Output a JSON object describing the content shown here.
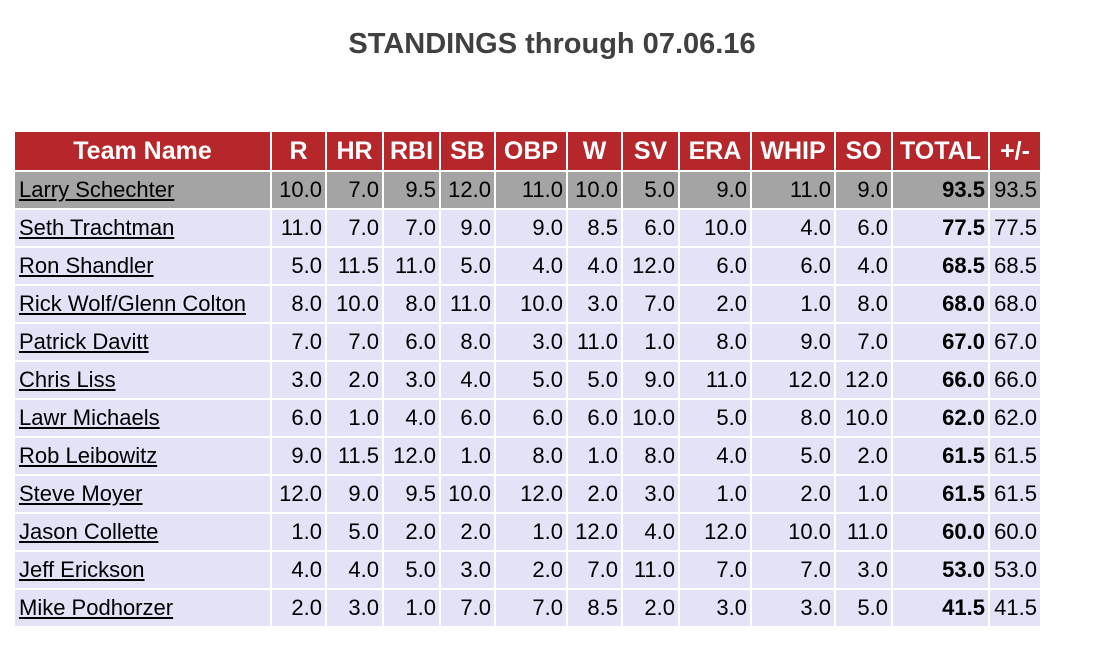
{
  "page": {
    "title": "STANDINGS through 07.06.16"
  },
  "colors": {
    "header_bg": "#b5272b",
    "header_text": "#ffffff",
    "row_bg": "#e3e3f7",
    "leader_row_bg": "#a4a4a4",
    "title_color": "#404040"
  },
  "table": {
    "headers": [
      "Team Name",
      "R",
      "HR",
      "RBI",
      "SB",
      "OBP",
      "W",
      "SV",
      "ERA",
      "WHIP",
      "SO",
      "TOTAL",
      "+/-"
    ],
    "rows": [
      {
        "team": "Larry Schechter",
        "r": "10.0",
        "hr": "7.0",
        "rbi": "9.5",
        "sb": "12.0",
        "obp": "11.0",
        "w": "10.0",
        "sv": "5.0",
        "era": "9.0",
        "whip": "11.0",
        "so": "9.0",
        "total": "93.5",
        "diff": "93.5"
      },
      {
        "team": "Seth Trachtman",
        "r": "11.0",
        "hr": "7.0",
        "rbi": "7.0",
        "sb": "9.0",
        "obp": "9.0",
        "w": "8.5",
        "sv": "6.0",
        "era": "10.0",
        "whip": "4.0",
        "so": "6.0",
        "total": "77.5",
        "diff": "77.5"
      },
      {
        "team": "Ron Shandler",
        "r": "5.0",
        "hr": "11.5",
        "rbi": "11.0",
        "sb": "5.0",
        "obp": "4.0",
        "w": "4.0",
        "sv": "12.0",
        "era": "6.0",
        "whip": "6.0",
        "so": "4.0",
        "total": "68.5",
        "diff": "68.5"
      },
      {
        "team": "Rick Wolf/Glenn Colton",
        "r": "8.0",
        "hr": "10.0",
        "rbi": "8.0",
        "sb": "11.0",
        "obp": "10.0",
        "w": "3.0",
        "sv": "7.0",
        "era": "2.0",
        "whip": "1.0",
        "so": "8.0",
        "total": "68.0",
        "diff": "68.0"
      },
      {
        "team": "Patrick Davitt",
        "r": "7.0",
        "hr": "7.0",
        "rbi": "6.0",
        "sb": "8.0",
        "obp": "3.0",
        "w": "11.0",
        "sv": "1.0",
        "era": "8.0",
        "whip": "9.0",
        "so": "7.0",
        "total": "67.0",
        "diff": "67.0"
      },
      {
        "team": "Chris Liss",
        "r": "3.0",
        "hr": "2.0",
        "rbi": "3.0",
        "sb": "4.0",
        "obp": "5.0",
        "w": "5.0",
        "sv": "9.0",
        "era": "11.0",
        "whip": "12.0",
        "so": "12.0",
        "total": "66.0",
        "diff": "66.0"
      },
      {
        "team": "Lawr Michaels",
        "r": "6.0",
        "hr": "1.0",
        "rbi": "4.0",
        "sb": "6.0",
        "obp": "6.0",
        "w": "6.0",
        "sv": "10.0",
        "era": "5.0",
        "whip": "8.0",
        "so": "10.0",
        "total": "62.0",
        "diff": "62.0"
      },
      {
        "team": "Rob Leibowitz",
        "r": "9.0",
        "hr": "11.5",
        "rbi": "12.0",
        "sb": "1.0",
        "obp": "8.0",
        "w": "1.0",
        "sv": "8.0",
        "era": "4.0",
        "whip": "5.0",
        "so": "2.0",
        "total": "61.5",
        "diff": "61.5"
      },
      {
        "team": "Steve Moyer",
        "r": "12.0",
        "hr": "9.0",
        "rbi": "9.5",
        "sb": "10.0",
        "obp": "12.0",
        "w": "2.0",
        "sv": "3.0",
        "era": "1.0",
        "whip": "2.0",
        "so": "1.0",
        "total": "61.5",
        "diff": "61.5"
      },
      {
        "team": "Jason Collette",
        "r": "1.0",
        "hr": "5.0",
        "rbi": "2.0",
        "sb": "2.0",
        "obp": "1.0",
        "w": "12.0",
        "sv": "4.0",
        "era": "12.0",
        "whip": "10.0",
        "so": "11.0",
        "total": "60.0",
        "diff": "60.0"
      },
      {
        "team": "Jeff Erickson",
        "r": "4.0",
        "hr": "4.0",
        "rbi": "5.0",
        "sb": "3.0",
        "obp": "2.0",
        "w": "7.0",
        "sv": "11.0",
        "era": "7.0",
        "whip": "7.0",
        "so": "3.0",
        "total": "53.0",
        "diff": "53.0"
      },
      {
        "team": "Mike Podhorzer",
        "r": "2.0",
        "hr": "3.0",
        "rbi": "1.0",
        "sb": "7.0",
        "obp": "7.0",
        "w": "8.5",
        "sv": "2.0",
        "era": "3.0",
        "whip": "3.0",
        "so": "5.0",
        "total": "41.5",
        "diff": "41.5"
      }
    ]
  }
}
